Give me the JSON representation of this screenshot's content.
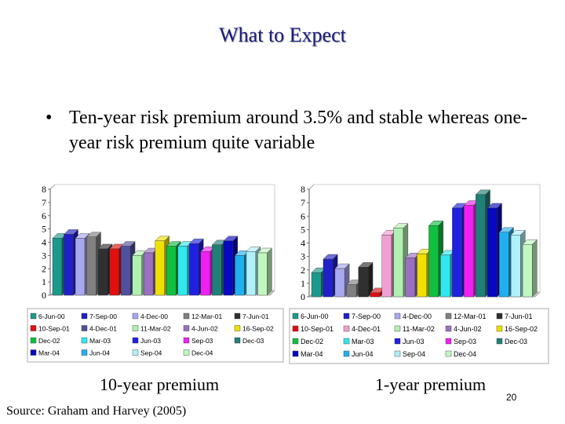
{
  "slide": {
    "title": "What to Expect",
    "bullet": "Ten-year risk premium around 3.5% and stable whereas one-year risk premium quite variable",
    "caption_left": "10-year premium",
    "caption_right": "1-year premium",
    "source": "Source: Graham and Harvey (2005)",
    "page_number": "20"
  },
  "chart_data": [
    {
      "type": "bar",
      "title": "",
      "xlabel": "",
      "ylabel": "",
      "ylim": [
        0,
        8
      ],
      "yticks": [
        "0",
        "1",
        "2",
        "3",
        "4",
        "5",
        "6",
        "7",
        "8"
      ],
      "grid": false,
      "legend": "bottom",
      "categories": [
        "6-Jun-00",
        "7-Sep-00",
        "4-Dec-00",
        "12-Mar-01",
        "7-Jun-01",
        "10-Sep-01",
        "4-Dec-01",
        "11-Mar-02",
        "4-Jun-02",
        "16-Sep-02",
        "Dec-02",
        "Mar-03",
        "Jun-03",
        "Sep-03",
        "Dec-03",
        "Mar-04",
        "Jun-04",
        "Sep-04",
        "Dec-04"
      ],
      "colors": [
        "#1a9a8a",
        "#2020c8",
        "#a8a8f0",
        "#808080",
        "#303030",
        "#e01010",
        "#5050a0",
        "#b0f0b0",
        "#9a70c0",
        "#f0e000",
        "#10c040",
        "#30e8f0",
        "#2020e0",
        "#f020f0",
        "#208078",
        "#0808c0",
        "#20b0f0",
        "#b0f0f8",
        "#c0f8c0"
      ],
      "values": [
        4.3,
        4.6,
        4.3,
        4.4,
        3.5,
        3.5,
        3.7,
        3.0,
        3.2,
        4.1,
        3.7,
        3.7,
        3.9,
        3.3,
        3.8,
        4.1,
        3.0,
        3.3,
        3.2
      ]
    },
    {
      "type": "bar",
      "title": "",
      "xlabel": "",
      "ylabel": "",
      "ylim": [
        0,
        8
      ],
      "yticks": [
        "0",
        "1",
        "2",
        "3",
        "4",
        "5",
        "6",
        "7",
        "8"
      ],
      "grid": false,
      "legend": "bottom",
      "categories": [
        "6-Jun-00",
        "7-Sep-00",
        "4-Dec-00",
        "12-Mar-01",
        "7-Jun-01",
        "10-Sep-01",
        "4-Dec-01",
        "11-Mar-02",
        "4-Jun-02",
        "16-Sep-02",
        "Dec-02",
        "Mar-03",
        "Jun-03",
        "Sep-03",
        "Dec-03",
        "Mar-04",
        "Jun-04",
        "Sep-04",
        "Dec-04"
      ],
      "colors": [
        "#1a9a8a",
        "#2020c8",
        "#a8a8f0",
        "#808080",
        "#303030",
        "#e01010",
        "#f0a0d0",
        "#b0f0b0",
        "#9a70c0",
        "#f0e000",
        "#10c040",
        "#30e8f0",
        "#2020e0",
        "#f020f0",
        "#208078",
        "#0808c0",
        "#20b0f0",
        "#b0f0f8",
        "#c0f8c0"
      ],
      "values": [
        1.8,
        2.8,
        2.1,
        0.9,
        2.2,
        0.3,
        4.6,
        5.1,
        2.9,
        3.2,
        5.3,
        3.1,
        6.6,
        6.8,
        7.6,
        6.6,
        4.8,
        4.6,
        3.9
      ]
    }
  ]
}
